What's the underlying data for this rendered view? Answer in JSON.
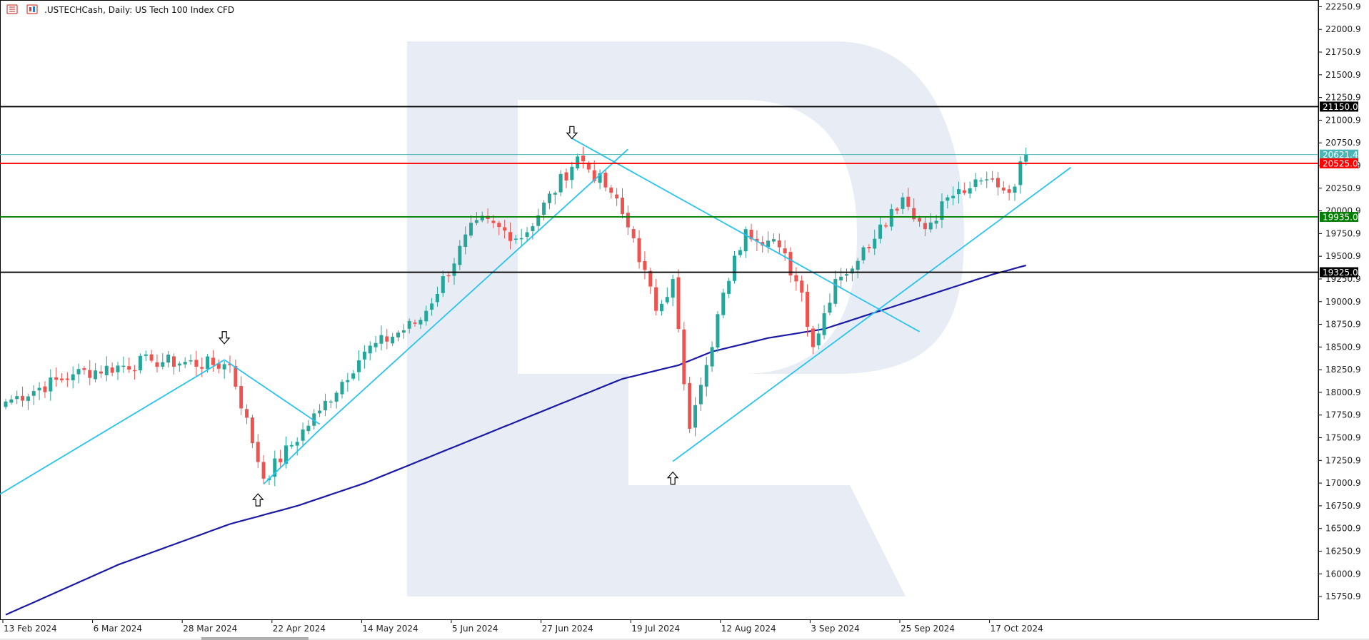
{
  "header": {
    "symbol_label": ".USTECHCash, Daily:  US Tech 100 Index CFD",
    "icons": [
      "bars-icon",
      "candles-icon"
    ]
  },
  "colors": {
    "bull": "#26a69a",
    "bear": "#ef5350",
    "trendline": "#29c3f0",
    "moving_average": "#1a1aa6",
    "resistance": "#000000",
    "red_level": "#ff0000",
    "green_level": "#008000",
    "current_price": "#49b7b5",
    "watermark": "#e8edf5"
  },
  "chart_data": {
    "type": "candlestick",
    "title": ".USTECHCash, Daily:  US Tech 100 Index CFD",
    "timeframe": "Daily",
    "ylim": [
      15500.0,
      22325.0
    ],
    "y_ticks": [
      15750.9,
      16000.9,
      16250.9,
      16500.9,
      16750.9,
      17000.9,
      17250.9,
      17500.9,
      17750.9,
      18000.9,
      18250.9,
      18500.9,
      18750.9,
      19000.9,
      19250.9,
      19500.9,
      19750.9,
      20000.9,
      20250.9,
      20500.9,
      20750.9,
      21000.9,
      21250.9,
      21500.9,
      21750.9,
      22000.9,
      22250.9
    ],
    "x_ticks": [
      {
        "label": "13 Feb 2024",
        "index": 0
      },
      {
        "label": "6 Mar 2024",
        "index": 16
      },
      {
        "label": "28 Mar 2024",
        "index": 32
      },
      {
        "label": "22 Apr 2024",
        "index": 48
      },
      {
        "label": "14 May 2024",
        "index": 64
      },
      {
        "label": "5 Jun 2024",
        "index": 80
      },
      {
        "label": "27 Jun 2024",
        "index": 96
      },
      {
        "label": "19 Jul 2024",
        "index": 112
      },
      {
        "label": "12 Aug 2024",
        "index": 128
      },
      {
        "label": "3 Sep 2024",
        "index": 144
      },
      {
        "label": "25 Sep 2024",
        "index": 160
      },
      {
        "label": "17 Oct 2024",
        "index": 176
      }
    ],
    "key_closes": [
      {
        "index": 0,
        "close": 17900
      },
      {
        "index": 12,
        "close": 18200
      },
      {
        "index": 26,
        "close": 18350
      },
      {
        "index": 40,
        "close": 18300
      },
      {
        "index": 46,
        "close": 17050
      },
      {
        "index": 56,
        "close": 17800
      },
      {
        "index": 64,
        "close": 18450
      },
      {
        "index": 74,
        "close": 18800
      },
      {
        "index": 84,
        "close": 19900
      },
      {
        "index": 92,
        "close": 19700
      },
      {
        "index": 102,
        "close": 20600
      },
      {
        "index": 108,
        "close": 20200
      },
      {
        "index": 112,
        "close": 19700
      },
      {
        "index": 116,
        "close": 18900
      },
      {
        "index": 119,
        "close": 19250
      },
      {
        "index": 120,
        "close": 18700
      },
      {
        "index": 122,
        "close": 17600
      },
      {
        "index": 126,
        "close": 18500
      },
      {
        "index": 128,
        "close": 19100
      },
      {
        "index": 132,
        "close": 19800
      },
      {
        "index": 138,
        "close": 19600
      },
      {
        "index": 142,
        "close": 19100
      },
      {
        "index": 144,
        "close": 18500
      },
      {
        "index": 148,
        "close": 19250
      },
      {
        "index": 152,
        "close": 19450
      },
      {
        "index": 156,
        "close": 19850
      },
      {
        "index": 160,
        "close": 20150
      },
      {
        "index": 164,
        "close": 19800
      },
      {
        "index": 168,
        "close": 20150
      },
      {
        "index": 172,
        "close": 20250
      },
      {
        "index": 176,
        "close": 20350
      },
      {
        "index": 179,
        "close": 20200
      },
      {
        "index": 182,
        "close": 20621.4
      }
    ],
    "moving_average": [
      {
        "index": 0,
        "value": 15550
      },
      {
        "index": 20,
        "value": 16100
      },
      {
        "index": 40,
        "value": 16550
      },
      {
        "index": 52,
        "value": 16750
      },
      {
        "index": 64,
        "value": 17000
      },
      {
        "index": 76,
        "value": 17300
      },
      {
        "index": 88,
        "value": 17600
      },
      {
        "index": 100,
        "value": 17900
      },
      {
        "index": 110,
        "value": 18150
      },
      {
        "index": 120,
        "value": 18300
      },
      {
        "index": 126,
        "value": 18450
      },
      {
        "index": 136,
        "value": 18600
      },
      {
        "index": 146,
        "value": 18700
      },
      {
        "index": 156,
        "value": 18900
      },
      {
        "index": 166,
        "value": 19100
      },
      {
        "index": 176,
        "value": 19300
      },
      {
        "index": 182,
        "value": 19400
      }
    ],
    "trendlines": [
      {
        "from": {
          "index": -1,
          "price": 16880
        },
        "to": {
          "index": 39,
          "price": 18360
        }
      },
      {
        "from": {
          "index": 39,
          "price": 18360
        },
        "to": {
          "index": 56,
          "price": 17650
        }
      },
      {
        "from": {
          "index": 46,
          "price": 16990
        },
        "to": {
          "index": 56,
          "price": 17590
        }
      },
      {
        "from": {
          "index": 56,
          "price": 17590
        },
        "to": {
          "index": 111,
          "price": 20680
        }
      },
      {
        "from": {
          "index": 101,
          "price": 20800
        },
        "to": {
          "index": 163,
          "price": 18670
        }
      },
      {
        "from": {
          "index": 119,
          "price": 17240
        },
        "to": {
          "index": 190,
          "price": 20480
        }
      }
    ],
    "arrow_markers": [
      {
        "direction": "down",
        "index": 39,
        "price": 18600
      },
      {
        "direction": "up",
        "index": 45,
        "price": 16820
      },
      {
        "direction": "down",
        "index": 101,
        "price": 20860
      },
      {
        "direction": "up",
        "index": 119,
        "price": 17060
      }
    ],
    "horizontal_levels": [
      {
        "label": "21150.0",
        "value": 21150.0,
        "color": "#000000"
      },
      {
        "label": "20621.4",
        "value": 20621.4,
        "color": "#49b7b5"
      },
      {
        "label": "20525.0",
        "value": 20525.0,
        "color": "#ff0000"
      },
      {
        "label": "19935.0",
        "value": 19935.0,
        "color": "#008000"
      },
      {
        "label": "19325.0",
        "value": 19325.0,
        "color": "#000000"
      }
    ]
  }
}
